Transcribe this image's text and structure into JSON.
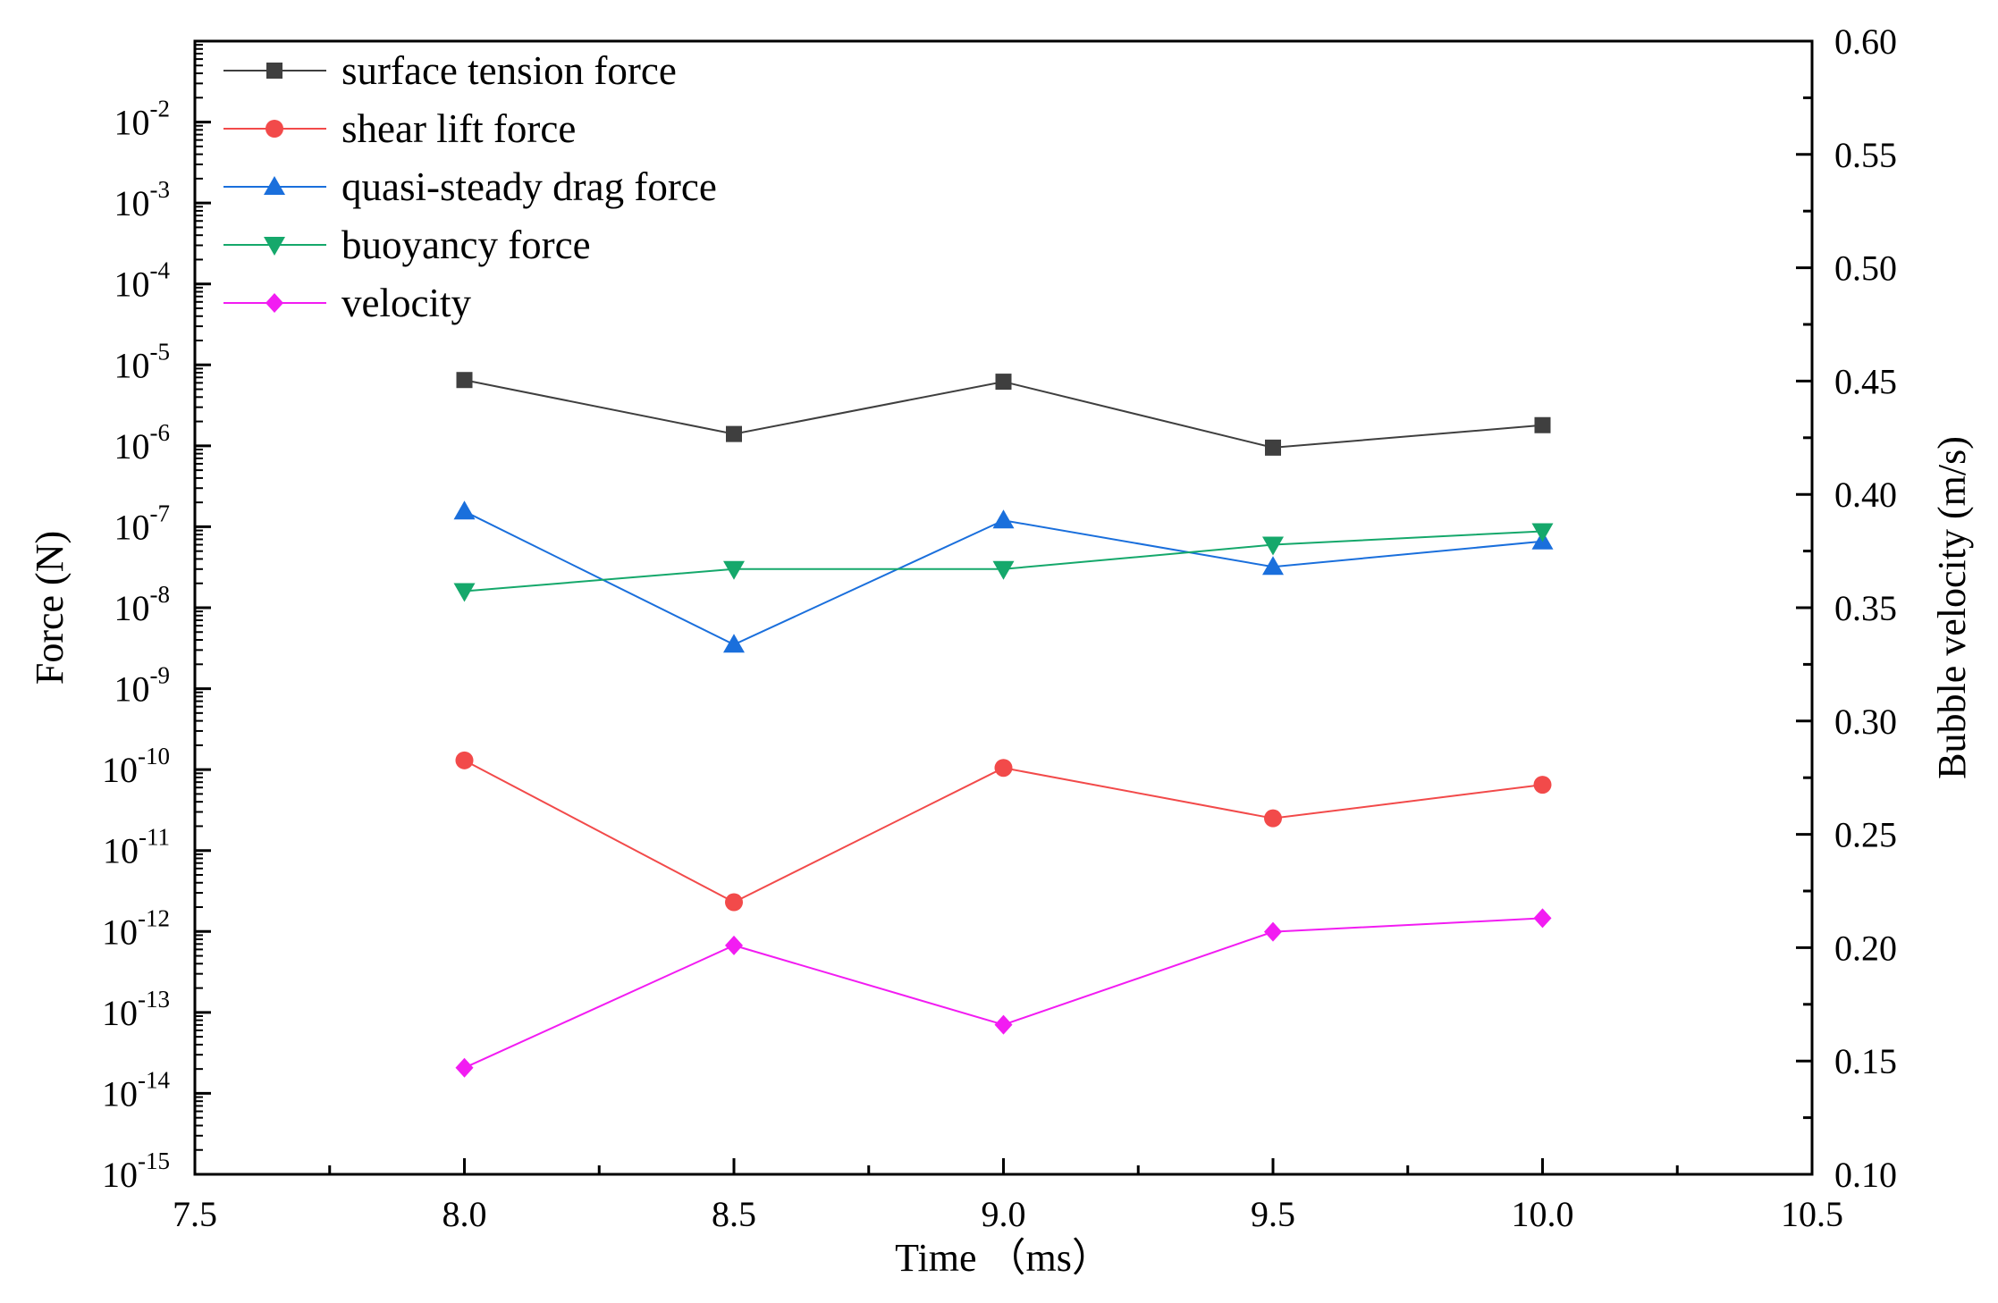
{
  "chart_data": {
    "type": "line",
    "title": "",
    "xlabel": "Time （ms）",
    "ylabel": "Force (N)",
    "ylabel_right": "Bubble velocity (m/s)",
    "x_ticks": [
      "7.5",
      "8.0",
      "8.5",
      "9.0",
      "9.5",
      "10.0",
      "10.5"
    ],
    "x_tick_values": [
      7.5,
      8.0,
      8.5,
      9.0,
      9.5,
      10.0,
      10.5
    ],
    "xlim": [
      7.5,
      10.5
    ],
    "y_left_exponents": [
      "-15",
      "-14",
      "-13",
      "-12",
      "-11",
      "-10",
      "-9",
      "-8",
      "-7",
      "-6",
      "-5",
      "-4",
      "-3",
      "-2"
    ],
    "y_left_base": "10",
    "ylim_left_log10": [
      -15,
      -1
    ],
    "y_right_ticks": [
      "0.10",
      "0.15",
      "0.20",
      "0.25",
      "0.30",
      "0.35",
      "0.40",
      "0.45",
      "0.50",
      "0.55",
      "0.60"
    ],
    "y_right_tick_values": [
      0.1,
      0.15,
      0.2,
      0.25,
      0.3,
      0.35,
      0.4,
      0.45,
      0.5,
      0.55,
      0.6
    ],
    "ylim_right": [
      0.1,
      0.6
    ],
    "legend_position": "top-left",
    "grid": false,
    "x": [
      8.0,
      8.5,
      9.0,
      9.5,
      10.0
    ],
    "series": [
      {
        "name": "surface tension force",
        "axis": "left",
        "color": "#3f3f3f",
        "marker": "square",
        "values": [
          6.5e-06,
          1.4e-06,
          6.2e-06,
          9.5e-07,
          1.8e-06
        ]
      },
      {
        "name": "shear lift force",
        "axis": "left",
        "color": "#f24a4a",
        "marker": "circle",
        "values": [
          1.3e-10,
          2.3e-12,
          1.05e-10,
          2.5e-11,
          6.5e-11
        ]
      },
      {
        "name": "quasi-steady drag force",
        "axis": "left",
        "color": "#1a6fdc",
        "marker": "triangle-up",
        "values": [
          1.55e-07,
          3.5e-09,
          1.2e-07,
          3.2e-08,
          6.6e-08
        ]
      },
      {
        "name": "buoyancy force",
        "axis": "left",
        "color": "#15a86b",
        "marker": "triangle-down",
        "values": [
          1.6e-08,
          3e-08,
          3e-08,
          6e-08,
          8.8e-08
        ]
      },
      {
        "name": "velocity",
        "axis": "right",
        "color": "#f21cf2",
        "marker": "diamond",
        "values": [
          0.147,
          0.201,
          0.166,
          0.207,
          0.213
        ]
      }
    ]
  }
}
